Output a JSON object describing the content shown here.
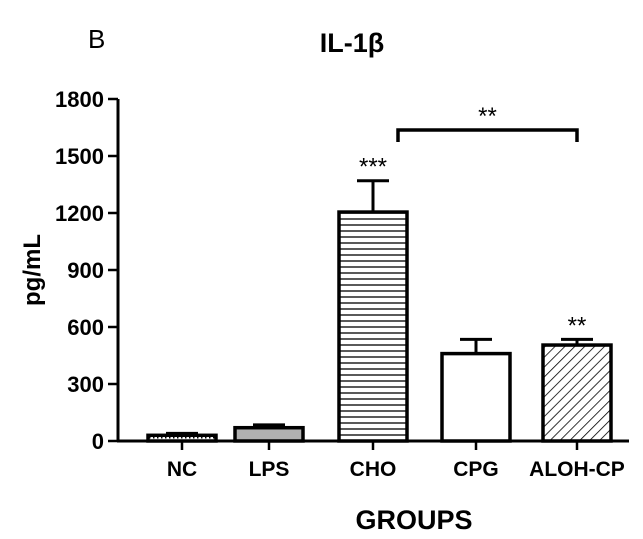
{
  "panel_label": "B",
  "chart_data": {
    "type": "bar",
    "title": "IL-1β",
    "xlabel": "GROUPS",
    "ylabel": "pg/mL",
    "ylim": [
      0,
      1800
    ],
    "yticks": [
      0,
      300,
      600,
      900,
      1200,
      1500,
      1800
    ],
    "categories": [
      "NC",
      "LPS",
      "CHO",
      "CPG",
      "ALOH-CP"
    ],
    "values": [
      30,
      70,
      1205,
      460,
      505
    ],
    "errors": [
      10,
      15,
      165,
      75,
      30
    ],
    "bar_styles": [
      "dotted",
      "gray",
      "horizontal-lines",
      "white",
      "diagonal-hatch"
    ],
    "significance_labels": [
      "",
      "",
      "***",
      "",
      "**"
    ],
    "comparison": {
      "from": "CHO",
      "to": "ALOH-CP",
      "label": "**"
    },
    "grid": false,
    "legend": "none"
  }
}
